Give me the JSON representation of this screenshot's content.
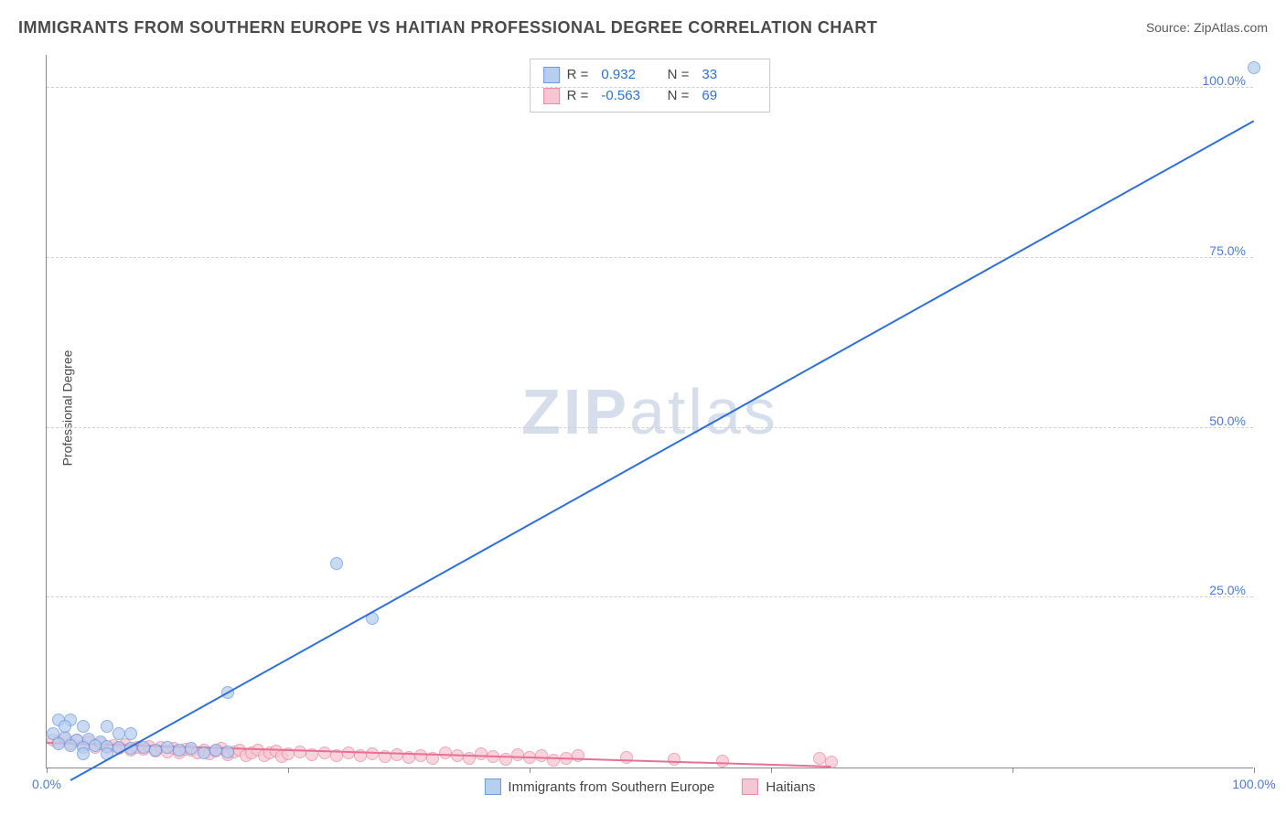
{
  "title": "IMMIGRANTS FROM SOUTHERN EUROPE VS HAITIAN PROFESSIONAL DEGREE CORRELATION CHART",
  "source": "Source: ZipAtlas.com",
  "watermark": {
    "bold": "ZIP",
    "rest": "atlas"
  },
  "axes": {
    "ylabel": "Professional Degree",
    "xlim": [
      0,
      100
    ],
    "ylim": [
      0,
      105
    ],
    "xticks": [
      0,
      20,
      40,
      60,
      80,
      100
    ],
    "xtick_labels": [
      "0.0%",
      "",
      "",
      "",
      "",
      "100.0%"
    ],
    "yticks": [
      25,
      50,
      75,
      100
    ],
    "ytick_labels": [
      "25.0%",
      "50.0%",
      "75.0%",
      "100.0%"
    ],
    "grid_color": "#d0d0d0"
  },
  "series": {
    "blue": {
      "label": "Immigrants from Southern Europe",
      "fill": "#b8ceee",
      "stroke": "#6a9ae0",
      "line_color": "#2f6fd8",
      "marker_radius": 7,
      "R": "0.932",
      "N": "33",
      "trend": {
        "x1": 2,
        "y1": -2,
        "x2": 100,
        "y2": 95
      },
      "points": [
        [
          100,
          103
        ],
        [
          24,
          30
        ],
        [
          27,
          22
        ],
        [
          15,
          11
        ],
        [
          1,
          7
        ],
        [
          2,
          7
        ],
        [
          3,
          6
        ],
        [
          5,
          6
        ],
        [
          6,
          5
        ],
        [
          7,
          5
        ],
        [
          0.5,
          5
        ],
        [
          1.5,
          4.5
        ],
        [
          2.5,
          4
        ],
        [
          3.5,
          4.2
        ],
        [
          4.5,
          3.8
        ],
        [
          1,
          3.5
        ],
        [
          2,
          3.2
        ],
        [
          3,
          3
        ],
        [
          4,
          3.3
        ],
        [
          5,
          3.1
        ],
        [
          6,
          3
        ],
        [
          7,
          2.8
        ],
        [
          8,
          3
        ],
        [
          9,
          2.5
        ],
        [
          10,
          3
        ],
        [
          11,
          2.5
        ],
        [
          12,
          2.8
        ],
        [
          13,
          2.2
        ],
        [
          14,
          2.5
        ],
        [
          15,
          2.3
        ],
        [
          3,
          2
        ],
        [
          5,
          2
        ],
        [
          1.5,
          6
        ]
      ]
    },
    "pink": {
      "label": "Haitians",
      "fill": "#f6c6d4",
      "stroke": "#e88ba5",
      "line_color": "#e96f94",
      "marker_radius": 7,
      "R": "-0.563",
      "N": "69",
      "trend": {
        "x1": 0,
        "y1": 3.5,
        "x2": 65,
        "y2": 0
      },
      "points": [
        [
          0.5,
          4
        ],
        [
          1,
          3.8
        ],
        [
          1.5,
          4.2
        ],
        [
          2,
          3.5
        ],
        [
          2.5,
          4
        ],
        [
          3,
          3.2
        ],
        [
          3.5,
          3.8
        ],
        [
          4,
          3
        ],
        [
          4.5,
          3.5
        ],
        [
          5,
          3
        ],
        [
          5.5,
          3.2
        ],
        [
          6,
          2.8
        ],
        [
          6.5,
          3.4
        ],
        [
          7,
          2.5
        ],
        [
          7.5,
          3
        ],
        [
          8,
          2.7
        ],
        [
          8.5,
          3.1
        ],
        [
          9,
          2.4
        ],
        [
          9.5,
          2.9
        ],
        [
          10,
          2.3
        ],
        [
          10.5,
          2.8
        ],
        [
          11,
          2.2
        ],
        [
          11.5,
          2.7
        ],
        [
          12,
          2.5
        ],
        [
          12.5,
          2.1
        ],
        [
          13,
          2.6
        ],
        [
          13.5,
          2
        ],
        [
          14,
          2.4
        ],
        [
          14.5,
          2.8
        ],
        [
          15,
          1.9
        ],
        [
          15.5,
          2.3
        ],
        [
          16,
          2.6
        ],
        [
          16.5,
          1.8
        ],
        [
          17,
          2.2
        ],
        [
          17.5,
          2.5
        ],
        [
          18,
          1.7
        ],
        [
          18.5,
          2.1
        ],
        [
          19,
          2.4
        ],
        [
          19.5,
          1.6
        ],
        [
          20,
          2
        ],
        [
          21,
          2.3
        ],
        [
          22,
          1.9
        ],
        [
          23,
          2.2
        ],
        [
          24,
          1.8
        ],
        [
          25,
          2.1
        ],
        [
          26,
          1.7
        ],
        [
          27,
          2
        ],
        [
          28,
          1.6
        ],
        [
          29,
          1.9
        ],
        [
          30,
          1.5
        ],
        [
          31,
          1.8
        ],
        [
          32,
          1.4
        ],
        [
          33,
          2.1
        ],
        [
          34,
          1.7
        ],
        [
          35,
          1.3
        ],
        [
          36,
          2
        ],
        [
          37,
          1.6
        ],
        [
          38,
          1.2
        ],
        [
          39,
          1.9
        ],
        [
          40,
          1.5
        ],
        [
          41,
          1.8
        ],
        [
          42,
          1.1
        ],
        [
          43,
          1.4
        ],
        [
          44,
          1.7
        ],
        [
          48,
          1.5
        ],
        [
          52,
          1.2
        ],
        [
          56,
          1
        ],
        [
          64,
          1.3
        ],
        [
          65,
          0.8
        ]
      ]
    }
  }
}
